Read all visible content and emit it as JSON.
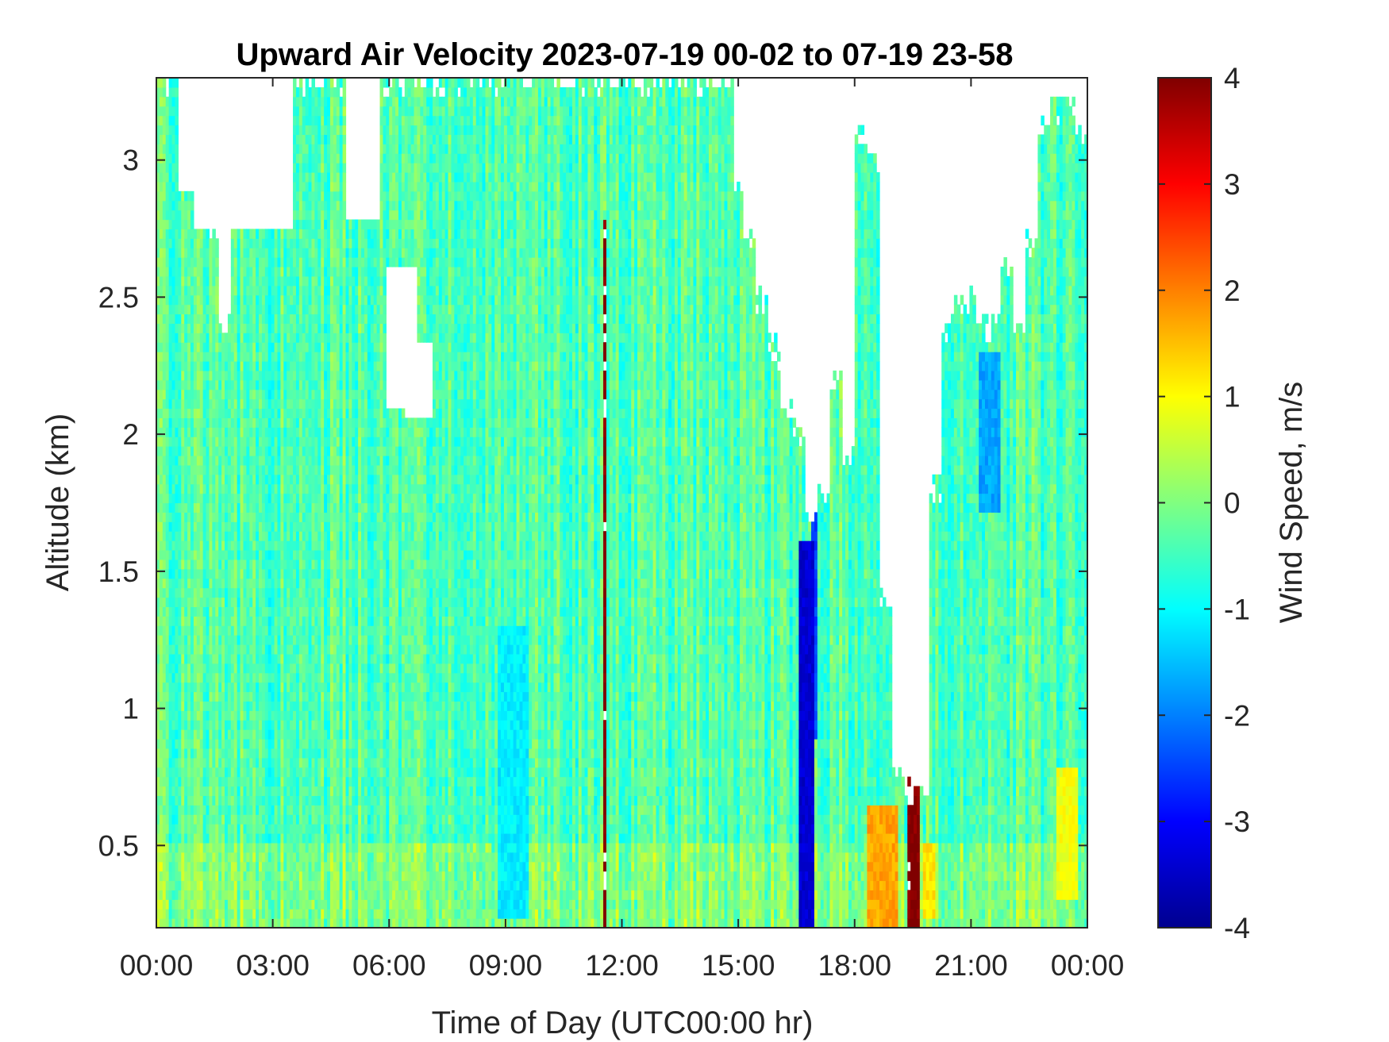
{
  "chart_data": {
    "type": "heatmap",
    "title": "Upward Air Velocity 2023-07-19 00-02 to 07-19 23-58",
    "xlabel": "Time of Day (UTC00:00 hr)",
    "ylabel": "Altitude (km)",
    "x_unit": "hours",
    "xlim": [
      0,
      24
    ],
    "ylim": [
      0.2,
      3.3
    ],
    "x_ticks": [
      {
        "value": 0,
        "label": "00:00"
      },
      {
        "value": 3,
        "label": "03:00"
      },
      {
        "value": 6,
        "label": "06:00"
      },
      {
        "value": 9,
        "label": "09:00"
      },
      {
        "value": 12,
        "label": "12:00"
      },
      {
        "value": 15,
        "label": "15:00"
      },
      {
        "value": 18,
        "label": "18:00"
      },
      {
        "value": 21,
        "label": "21:00"
      },
      {
        "value": 24,
        "label": "00:00"
      }
    ],
    "y_ticks": [
      {
        "value": 0.5,
        "label": "0.5"
      },
      {
        "value": 1.0,
        "label": "1"
      },
      {
        "value": 1.5,
        "label": "1.5"
      },
      {
        "value": 2.0,
        "label": "2"
      },
      {
        "value": 2.5,
        "label": "2.5"
      },
      {
        "value": 3.0,
        "label": "3"
      }
    ],
    "colorbar": {
      "label": "Wind Speed, m/s",
      "colormap": "jet",
      "clim": [
        -4,
        4
      ],
      "ticks": [
        {
          "value": 4,
          "label": "4"
        },
        {
          "value": 3,
          "label": "3"
        },
        {
          "value": 2,
          "label": "2"
        },
        {
          "value": 1,
          "label": "1"
        },
        {
          "value": 0,
          "label": "0"
        },
        {
          "value": -1,
          "label": "-1"
        },
        {
          "value": -2,
          "label": "-2"
        },
        {
          "value": -3,
          "label": "-3"
        },
        {
          "value": -4,
          "label": "-4"
        }
      ],
      "colors": [
        "#00008f",
        "#0000ff",
        "#0080ff",
        "#00ffff",
        "#80ff80",
        "#ffff00",
        "#ff8000",
        "#ff0000",
        "#800000"
      ]
    },
    "data_top_km": [
      3.3,
      3.3,
      3.3,
      3.3,
      2.75,
      2.4,
      3.3,
      3.3,
      3.3,
      3.3,
      3.3,
      3.3,
      3.3,
      3.3,
      3.3,
      3.3,
      3.3,
      3.3,
      3.3,
      3.3,
      3.3,
      3.3,
      3.3,
      3.3,
      3.3,
      3.3,
      3.3,
      3.3,
      3.3,
      3.3,
      3.3,
      3.3,
      3.3,
      3.3,
      3.3,
      3.3,
      3.3,
      3.3,
      3.3,
      3.3,
      3.3,
      3.3,
      3.3,
      3.3,
      3.3,
      3.3,
      3.3,
      2.9,
      2.7,
      2.5,
      2.3,
      2.1,
      2.0,
      1.7,
      1.8,
      2.2,
      1.9,
      3.1,
      3.0,
      1.4,
      0.8,
      0.7,
      0.7,
      1.8,
      2.4,
      2.5,
      2.5,
      2.4,
      2.4,
      2.6,
      2.4,
      2.7,
      3.1,
      3.2,
      3.2,
      3.1
    ],
    "gaps": [
      {
        "x": [
          1.0,
          3.5
        ],
        "y": [
          2.75,
          3.3
        ]
      },
      {
        "x": [
          0.6,
          1.6
        ],
        "y": [
          2.9,
          3.3
        ]
      },
      {
        "x": [
          4.9,
          5.8
        ],
        "y": [
          2.8,
          3.3
        ]
      },
      {
        "x": [
          5.95,
          6.7
        ],
        "y": [
          2.1,
          2.6
        ]
      },
      {
        "x": [
          6.4,
          7.1
        ],
        "y": [
          2.05,
          2.35
        ]
      }
    ],
    "bands": [
      {
        "x": [
          11.5,
          11.6
        ],
        "y": [
          0.2,
          2.8
        ],
        "value": 4
      },
      {
        "x": [
          16.6,
          16.95
        ],
        "y": [
          0.2,
          1.6
        ],
        "value": -3.4
      },
      {
        "x": [
          16.9,
          17.05
        ],
        "y": [
          0.9,
          1.9
        ],
        "value": -2.5
      },
      {
        "x": [
          19.35,
          19.7
        ],
        "y": [
          0.2,
          1.95
        ],
        "value": 4
      },
      {
        "x": [
          18.3,
          19.1
        ],
        "y": [
          0.2,
          0.65
        ],
        "value": 1.7
      },
      {
        "x": [
          19.8,
          20.1
        ],
        "y": [
          0.25,
          0.5
        ],
        "value": 1.2
      },
      {
        "x": [
          21.2,
          21.8
        ],
        "y": [
          1.7,
          2.3
        ],
        "value": -1.7
      },
      {
        "x": [
          8.8,
          9.6
        ],
        "y": [
          0.25,
          1.3
        ],
        "value": -1.1
      },
      {
        "x": [
          23.2,
          23.8
        ],
        "y": [
          0.3,
          0.8
        ],
        "value": 0.9
      }
    ],
    "background_value": -0.35
  }
}
